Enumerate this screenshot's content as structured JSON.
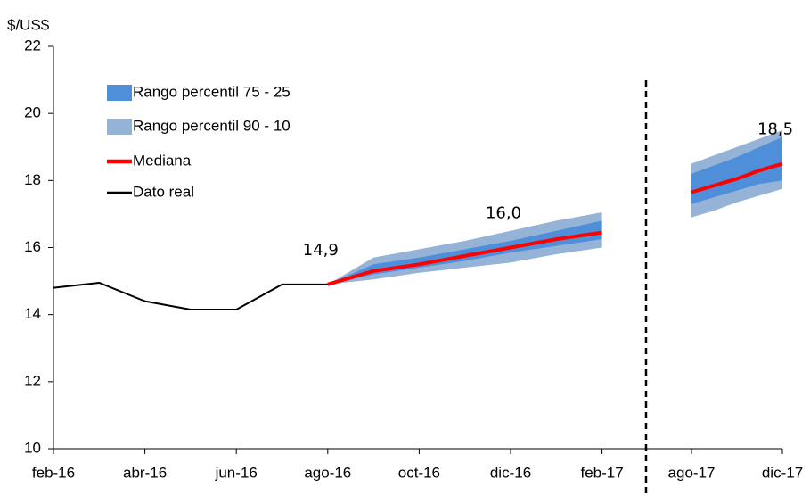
{
  "chart_data": {
    "type": "line",
    "y_label": "$/US$",
    "categories": [
      "feb-16",
      null,
      "abr-16",
      null,
      "jun-16",
      null,
      "ago-16",
      null,
      "oct-16",
      null,
      "dic-16",
      null,
      "feb-17",
      null,
      null,
      null,
      null,
      null,
      "ago-17",
      null,
      null,
      null,
      "dic-17"
    ],
    "ylim": [
      10,
      22
    ],
    "yticks": [
      10,
      12,
      14,
      16,
      18,
      20,
      22
    ],
    "series": [
      {
        "name": "Rango percentil 75 - 25",
        "color": "#4f8fd9",
        "kind": "band",
        "low": [
          null,
          null,
          null,
          null,
          null,
          null,
          14.9,
          15.2,
          15.4,
          15.6,
          15.85,
          16.05,
          16.25,
          null,
          null,
          null,
          null,
          null,
          17.3,
          17.5,
          17.7,
          17.9,
          18.0
        ],
        "high": [
          null,
          null,
          null,
          null,
          null,
          null,
          14.9,
          15.5,
          15.7,
          15.95,
          16.2,
          16.5,
          16.8,
          null,
          null,
          null,
          null,
          null,
          18.2,
          18.45,
          18.7,
          19.0,
          19.3
        ]
      },
      {
        "name": "Rango percentil 90 - 10",
        "color": "#95b3d7",
        "kind": "band",
        "low": [
          null,
          null,
          null,
          null,
          null,
          null,
          14.9,
          15.05,
          15.25,
          15.4,
          15.55,
          15.8,
          16.0,
          null,
          null,
          null,
          null,
          null,
          16.9,
          17.1,
          17.35,
          17.55,
          17.75
        ],
        "high": [
          null,
          null,
          null,
          null,
          null,
          null,
          14.9,
          15.7,
          15.95,
          16.2,
          16.5,
          16.8,
          17.05,
          null,
          null,
          null,
          null,
          null,
          18.5,
          18.75,
          19.0,
          19.25,
          19.5
        ]
      },
      {
        "name": "Mediana",
        "color": "#ff0000",
        "kind": "line",
        "width": 4,
        "values": [
          null,
          null,
          null,
          null,
          null,
          null,
          14.9,
          15.3,
          15.5,
          15.75,
          16.0,
          16.25,
          16.45,
          null,
          null,
          null,
          null,
          null,
          17.65,
          17.85,
          18.05,
          18.3,
          18.5
        ],
        "value_labels": [
          null,
          null,
          null,
          null,
          null,
          null,
          "14,9",
          null,
          null,
          null,
          "16,0",
          null,
          null,
          null,
          null,
          null,
          null,
          null,
          null,
          null,
          null,
          null,
          "18,5"
        ]
      },
      {
        "name": "Dato real",
        "color": "#000000",
        "kind": "line",
        "width": 2,
        "values": [
          14.8,
          14.95,
          14.4,
          14.15,
          14.15,
          14.9,
          14.9,
          null,
          null,
          null,
          null,
          null,
          null,
          null,
          null,
          null,
          null,
          null,
          null,
          null,
          null,
          null,
          null
        ]
      }
    ]
  }
}
